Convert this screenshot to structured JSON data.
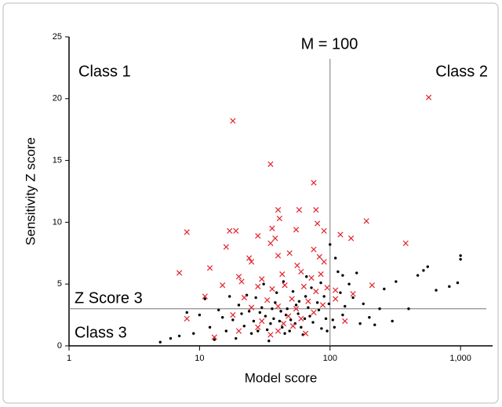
{
  "chart_data": {
    "type": "scatter",
    "xlabel": "Model score",
    "ylabel": "Sensitivity Z score",
    "annotations": [
      "M = 100",
      "Class 1",
      "Class 2",
      "Z Score 3",
      "Class 3"
    ],
    "vline": 100,
    "hline": 3,
    "xscale": "log",
    "xlim": [
      1,
      1760
    ],
    "ylim": [
      0,
      25
    ],
    "xticks": [
      1,
      10,
      100,
      {
        "value": 1000,
        "label": "1,000"
      }
    ],
    "yticks": [
      0,
      5,
      10,
      15,
      20,
      25
    ],
    "series": [
      {
        "color": "#000000",
        "marker": "dot",
        "x": [
          1000,
          1000,
          950,
          820,
          650,
          560,
          520,
          470,
          320,
          240,
          300,
          200,
          180,
          160,
          140,
          170,
          130,
          120,
          110,
          100,
          115,
          105,
          95,
          85,
          80,
          70,
          65,
          60,
          55,
          50,
          45,
          42,
          38,
          35,
          32,
          30,
          28,
          26,
          24,
          22,
          20,
          18,
          16,
          14,
          12,
          10,
          9,
          8,
          7,
          6,
          5,
          11,
          13,
          19,
          23,
          27,
          31,
          34,
          37,
          39,
          43,
          47,
          52,
          57,
          62,
          68,
          74,
          82,
          90,
          98,
          108,
          125,
          150,
          220,
          260,
          400,
          21,
          25,
          29,
          33,
          36,
          41,
          46,
          49,
          54,
          58,
          64,
          72,
          86,
          93,
          17,
          15,
          44,
          66,
          125
        ],
        "values": [
          7.3,
          7,
          5.1,
          4.8,
          4.5,
          6.4,
          6.1,
          5.7,
          5.2,
          3,
          2,
          2.3,
          3.4,
          5.9,
          5,
          1.8,
          3.2,
          4.3,
          7.1,
          8.2,
          6,
          2.1,
          1.2,
          5.1,
          3.5,
          2.4,
          4,
          1.5,
          3.3,
          2.1,
          1,
          2.8,
          3.5,
          1.8,
          2.4,
          3.1,
          1.2,
          2,
          2.8,
          1.6,
          3.3,
          2.1,
          1.2,
          2.9,
          1.5,
          2.5,
          1,
          2.7,
          0.8,
          0.6,
          0.3,
          3.8,
          0.5,
          0.6,
          4.1,
          3.9,
          5,
          0.4,
          2.2,
          4.3,
          1.5,
          3,
          4.4,
          2.6,
          0.9,
          3.1,
          1.9,
          2.9,
          4,
          3.4,
          1.5,
          2.5,
          3.9,
          1.7,
          4.6,
          3,
          2.6,
          1,
          2.7,
          1.3,
          3,
          2,
          2.5,
          1.2,
          1.8,
          3.6,
          2.2,
          4.7,
          1.4,
          2.2,
          4,
          2.3,
          5.2,
          5.6,
          5.7
        ]
      },
      {
        "color": "#e3222b",
        "marker": "x",
        "x": [
          570,
          18,
          35,
          75,
          40,
          58,
          78,
          41,
          80,
          190,
          8,
          17,
          19,
          36,
          55,
          90,
          38,
          28,
          120,
          145,
          380,
          16,
          35,
          49,
          24,
          40,
          75,
          83,
          25,
          12,
          56,
          90,
          7,
          20,
          30,
          43,
          60,
          72,
          85,
          21,
          15,
          28,
          36,
          45,
          63,
          78,
          95,
          110,
          150,
          11,
          22,
          33,
          51,
          68,
          25,
          40,
          55,
          88,
          8,
          18,
          30,
          44,
          60,
          75,
          20,
          28,
          40,
          52,
          65,
          13,
          35,
          48,
          110,
          210,
          130
        ],
        "values": [
          20.1,
          18.2,
          14.7,
          13.2,
          11,
          11,
          11,
          10.3,
          9.9,
          10.1,
          9.2,
          9.3,
          9.3,
          9.5,
          9.4,
          9.3,
          8.7,
          8.9,
          9,
          8.7,
          8.3,
          8,
          8.3,
          7.5,
          7.1,
          7.3,
          7.8,
          7.2,
          6.8,
          6.3,
          6.5,
          6.8,
          5.9,
          5.6,
          5.4,
          5.8,
          6,
          5.5,
          5.8,
          5.2,
          4.9,
          4.8,
          4.6,
          4.9,
          4.8,
          4.4,
          4.7,
          4.5,
          4.2,
          4,
          3.9,
          3.7,
          3.8,
          3.6,
          3.1,
          3.2,
          3,
          3.3,
          2.2,
          2.5,
          2,
          1.8,
          2.2,
          2.7,
          1.2,
          1.5,
          1.2,
          1.6,
          1,
          0.7,
          0.9,
          2.4,
          3.8,
          4.9,
          2
        ]
      }
    ]
  }
}
